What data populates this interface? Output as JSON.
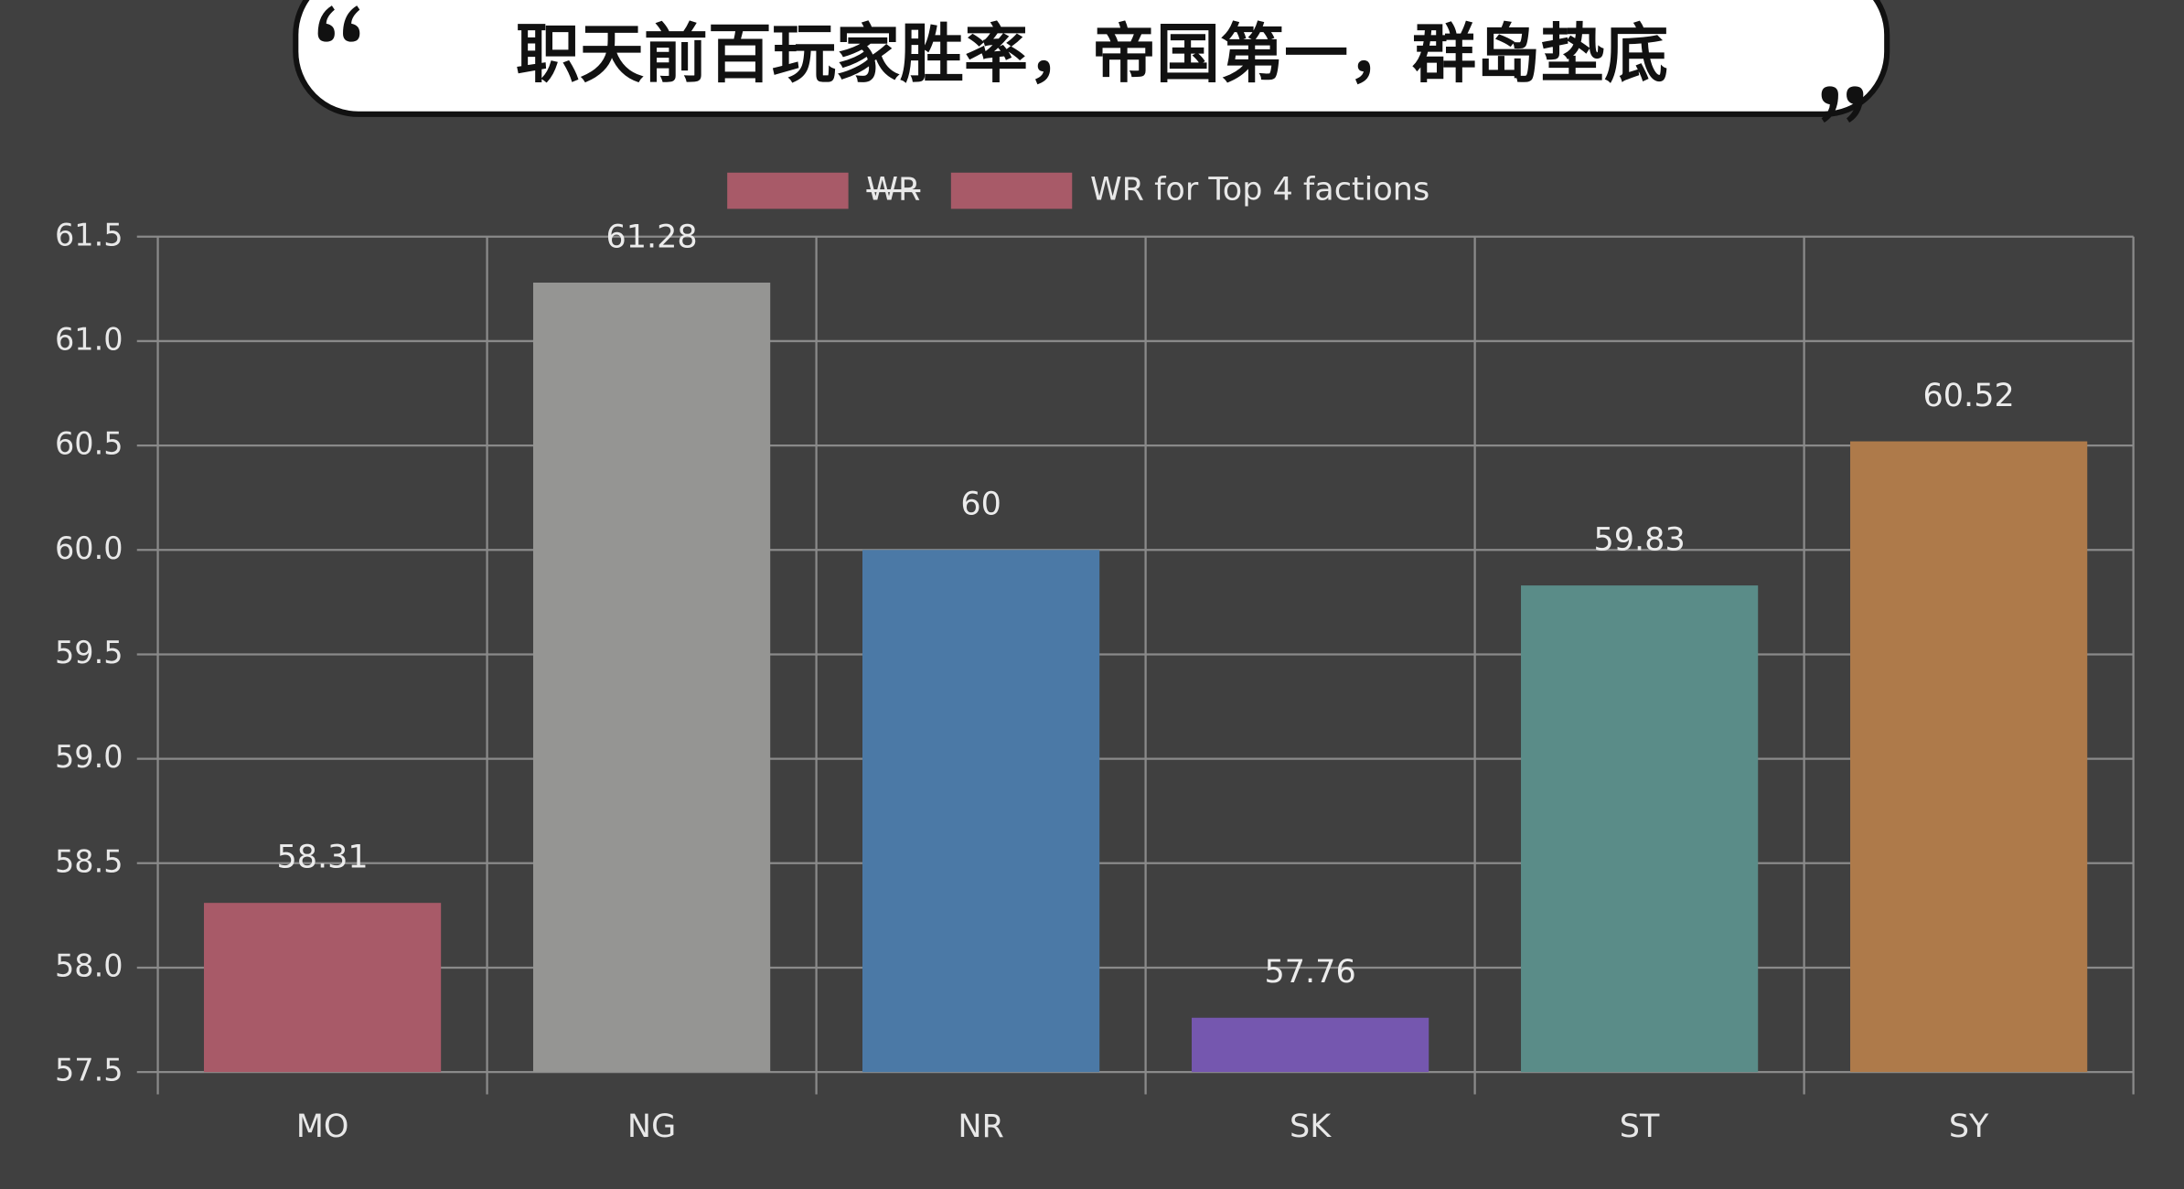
{
  "chart_data": {
    "type": "bar",
    "title": "职天前百玩家胜率，帝国第一，群岛垫底",
    "categories": [
      "MO",
      "NG",
      "NR",
      "SK",
      "ST",
      "SY"
    ],
    "hidden_series": [
      {
        "name": "WR",
        "color": "#a85a68"
      }
    ],
    "series": [
      {
        "name": "WR for Top 4 factions",
        "color": "#a85a68",
        "values": [
          58.31,
          61.28,
          60,
          57.76,
          59.83,
          60.52
        ],
        "colors": [
          "#a85a68",
          "#959593",
          "#4b79a6",
          "#7557af",
          "#5a8c88",
          "#ae7a4a"
        ]
      }
    ],
    "ylim": [
      57.5,
      61.5
    ],
    "yticks": [
      57.5,
      {
        "value": 58,
        "label": "58.0"
      },
      58.5,
      {
        "value": 59,
        "label": "59.0"
      },
      59.5,
      {
        "value": 60,
        "label": "60.0"
      },
      60.5,
      {
        "value": 61,
        "label": "61.0"
      },
      61.5
    ],
    "grid": true
  }
}
